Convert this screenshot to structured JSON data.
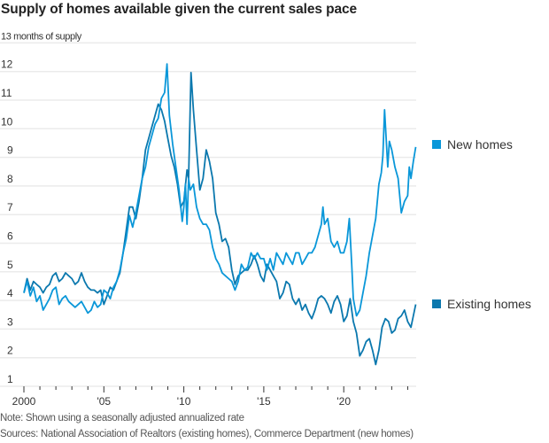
{
  "header": {
    "title": "Supply of homes available given the current sales pace"
  },
  "footer": {
    "note": "Note: Shown using a seasonally adjusted annualized rate",
    "sources": "Sources: National Association of Realtors (existing homes), Commerce Department (new homes)"
  },
  "chart_data": {
    "type": "line",
    "title": "Supply of homes available given the current sales pace",
    "ylabel": "months of supply",
    "y_top_label": "13 months of supply",
    "xlabel": "",
    "ylim": [
      1,
      13
    ],
    "xlim": [
      2000,
      2024.5
    ],
    "y_ticks": [
      1,
      2,
      3,
      4,
      5,
      6,
      7,
      8,
      9,
      10,
      11,
      12,
      13
    ],
    "y_tick_labels": [
      "1",
      "2",
      "3",
      "4",
      "5",
      "6",
      "7",
      "8",
      "9",
      "10",
      "11",
      "12",
      "13 months of supply"
    ],
    "x_ticks": [
      2000,
      2005,
      2010,
      2015,
      2020
    ],
    "x_tick_labels": [
      "2000",
      "'05",
      "'10",
      "'15",
      "'20"
    ],
    "x_minor_ticks": [
      2000,
      2001,
      2002,
      2003,
      2004,
      2005,
      2006,
      2007,
      2008,
      2009,
      2010,
      2011,
      2012,
      2013,
      2014,
      2015,
      2016,
      2017,
      2018,
      2019,
      2020,
      2021,
      2022,
      2023,
      2024
    ],
    "grid": true,
    "legend": "right",
    "series": [
      {
        "name": "New homes",
        "color": "#0a97d9",
        "points": [
          [
            2000.0,
            4.2
          ],
          [
            2000.2,
            4.6
          ],
          [
            2000.4,
            4.1
          ],
          [
            2000.6,
            4.4
          ],
          [
            2000.8,
            3.9
          ],
          [
            2001.0,
            4.1
          ],
          [
            2001.2,
            3.6
          ],
          [
            2001.4,
            3.8
          ],
          [
            2001.6,
            4.0
          ],
          [
            2001.8,
            4.3
          ],
          [
            2002.0,
            4.4
          ],
          [
            2002.2,
            3.8
          ],
          [
            2002.4,
            4.0
          ],
          [
            2002.6,
            4.1
          ],
          [
            2002.8,
            3.9
          ],
          [
            2003.0,
            3.8
          ],
          [
            2003.2,
            3.7
          ],
          [
            2003.4,
            3.8
          ],
          [
            2003.6,
            3.9
          ],
          [
            2003.8,
            3.7
          ],
          [
            2004.0,
            3.5
          ],
          [
            2004.2,
            3.6
          ],
          [
            2004.4,
            3.9
          ],
          [
            2004.6,
            3.7
          ],
          [
            2004.8,
            3.8
          ],
          [
            2005.0,
            4.3
          ],
          [
            2005.2,
            4.2
          ],
          [
            2005.4,
            4.0
          ],
          [
            2005.6,
            4.4
          ],
          [
            2005.8,
            4.6
          ],
          [
            2006.0,
            5.0
          ],
          [
            2006.2,
            5.6
          ],
          [
            2006.4,
            6.1
          ],
          [
            2006.6,
            6.9
          ],
          [
            2006.8,
            6.5
          ],
          [
            2007.0,
            7.0
          ],
          [
            2007.2,
            7.6
          ],
          [
            2007.4,
            8.2
          ],
          [
            2007.6,
            8.6
          ],
          [
            2007.8,
            9.3
          ],
          [
            2008.0,
            9.7
          ],
          [
            2008.2,
            10.1
          ],
          [
            2008.4,
            10.3
          ],
          [
            2008.6,
            11.0
          ],
          [
            2008.8,
            11.2
          ],
          [
            2008.95,
            12.2
          ],
          [
            2009.1,
            10.4
          ],
          [
            2009.3,
            9.4
          ],
          [
            2009.5,
            8.6
          ],
          [
            2009.7,
            7.8
          ],
          [
            2009.9,
            6.7
          ],
          [
            2010.0,
            7.2
          ],
          [
            2010.1,
            8.0
          ],
          [
            2010.2,
            6.6
          ],
          [
            2010.3,
            8.2
          ],
          [
            2010.4,
            7.8
          ],
          [
            2010.6,
            8.0
          ],
          [
            2010.8,
            7.2
          ],
          [
            2011.0,
            6.8
          ],
          [
            2011.2,
            6.6
          ],
          [
            2011.4,
            6.6
          ],
          [
            2011.6,
            6.4
          ],
          [
            2011.8,
            5.8
          ],
          [
            2012.0,
            5.4
          ],
          [
            2012.2,
            5.2
          ],
          [
            2012.4,
            4.9
          ],
          [
            2012.6,
            4.8
          ],
          [
            2012.8,
            4.7
          ],
          [
            2013.0,
            4.6
          ],
          [
            2013.2,
            4.3
          ],
          [
            2013.4,
            4.6
          ],
          [
            2013.6,
            5.2
          ],
          [
            2013.8,
            5.0
          ],
          [
            2014.0,
            5.1
          ],
          [
            2014.2,
            5.6
          ],
          [
            2014.4,
            5.4
          ],
          [
            2014.6,
            5.6
          ],
          [
            2014.8,
            5.4
          ],
          [
            2015.0,
            5.4
          ],
          [
            2015.2,
            5.0
          ],
          [
            2015.4,
            5.4
          ],
          [
            2015.6,
            5.0
          ],
          [
            2015.8,
            5.6
          ],
          [
            2016.0,
            5.4
          ],
          [
            2016.2,
            5.2
          ],
          [
            2016.4,
            5.6
          ],
          [
            2016.6,
            5.4
          ],
          [
            2016.8,
            5.2
          ],
          [
            2017.0,
            5.6
          ],
          [
            2017.2,
            5.6
          ],
          [
            2017.4,
            5.2
          ],
          [
            2017.6,
            5.4
          ],
          [
            2017.8,
            5.6
          ],
          [
            2018.0,
            5.6
          ],
          [
            2018.2,
            5.8
          ],
          [
            2018.4,
            6.2
          ],
          [
            2018.6,
            6.6
          ],
          [
            2018.7,
            7.2
          ],
          [
            2018.8,
            6.6
          ],
          [
            2019.0,
            6.8
          ],
          [
            2019.2,
            6.0
          ],
          [
            2019.4,
            5.8
          ],
          [
            2019.6,
            6.0
          ],
          [
            2019.8,
            5.6
          ],
          [
            2020.0,
            5.6
          ],
          [
            2020.2,
            6.0
          ],
          [
            2020.35,
            6.8
          ],
          [
            2020.5,
            5.2
          ],
          [
            2020.6,
            4.0
          ],
          [
            2020.8,
            3.4
          ],
          [
            2021.0,
            3.6
          ],
          [
            2021.2,
            4.2
          ],
          [
            2021.4,
            4.8
          ],
          [
            2021.6,
            5.6
          ],
          [
            2021.8,
            6.2
          ],
          [
            2022.0,
            6.8
          ],
          [
            2022.2,
            8.0
          ],
          [
            2022.35,
            8.4
          ],
          [
            2022.45,
            9.0
          ],
          [
            2022.55,
            10.6
          ],
          [
            2022.65,
            9.6
          ],
          [
            2022.75,
            8.6
          ],
          [
            2022.85,
            9.5
          ],
          [
            2023.0,
            9.2
          ],
          [
            2023.2,
            8.6
          ],
          [
            2023.4,
            8.2
          ],
          [
            2023.5,
            7.6
          ],
          [
            2023.6,
            7.0
          ],
          [
            2023.8,
            7.4
          ],
          [
            2024.0,
            7.6
          ],
          [
            2024.1,
            8.6
          ],
          [
            2024.2,
            8.2
          ],
          [
            2024.35,
            8.8
          ],
          [
            2024.5,
            9.3
          ]
        ]
      },
      {
        "name": "Existing homes",
        "color": "#0b78ae",
        "points": [
          [
            2000.0,
            4.2
          ],
          [
            2000.2,
            4.7
          ],
          [
            2000.4,
            4.3
          ],
          [
            2000.6,
            4.6
          ],
          [
            2000.8,
            4.5
          ],
          [
            2001.0,
            4.4
          ],
          [
            2001.2,
            4.2
          ],
          [
            2001.4,
            4.4
          ],
          [
            2001.6,
            4.5
          ],
          [
            2001.8,
            4.8
          ],
          [
            2002.0,
            4.9
          ],
          [
            2002.2,
            4.6
          ],
          [
            2002.4,
            4.7
          ],
          [
            2002.6,
            4.9
          ],
          [
            2002.8,
            4.8
          ],
          [
            2003.0,
            4.7
          ],
          [
            2003.2,
            4.5
          ],
          [
            2003.4,
            4.6
          ],
          [
            2003.6,
            4.9
          ],
          [
            2003.8,
            4.6
          ],
          [
            2004.0,
            4.4
          ],
          [
            2004.2,
            4.3
          ],
          [
            2004.4,
            4.3
          ],
          [
            2004.6,
            4.2
          ],
          [
            2004.8,
            4.3
          ],
          [
            2005.0,
            3.8
          ],
          [
            2005.2,
            4.1
          ],
          [
            2005.4,
            4.4
          ],
          [
            2005.6,
            4.3
          ],
          [
            2005.8,
            4.6
          ],
          [
            2006.0,
            4.9
          ],
          [
            2006.2,
            5.6
          ],
          [
            2006.4,
            6.4
          ],
          [
            2006.6,
            7.2
          ],
          [
            2006.8,
            7.2
          ],
          [
            2007.0,
            6.8
          ],
          [
            2007.2,
            7.4
          ],
          [
            2007.4,
            8.2
          ],
          [
            2007.6,
            9.2
          ],
          [
            2007.8,
            9.6
          ],
          [
            2008.0,
            10.0
          ],
          [
            2008.2,
            10.4
          ],
          [
            2008.4,
            10.8
          ],
          [
            2008.6,
            10.6
          ],
          [
            2008.8,
            10.2
          ],
          [
            2009.0,
            9.6
          ],
          [
            2009.2,
            9.0
          ],
          [
            2009.4,
            8.6
          ],
          [
            2009.6,
            8.0
          ],
          [
            2009.8,
            7.2
          ],
          [
            2010.0,
            7.4
          ],
          [
            2010.2,
            8.5
          ],
          [
            2010.3,
            8.2
          ],
          [
            2010.45,
            11.9
          ],
          [
            2010.6,
            10.6
          ],
          [
            2010.8,
            9.2
          ],
          [
            2011.0,
            7.8
          ],
          [
            2011.2,
            8.2
          ],
          [
            2011.4,
            9.2
          ],
          [
            2011.6,
            8.8
          ],
          [
            2011.8,
            8.2
          ],
          [
            2012.0,
            7.0
          ],
          [
            2012.2,
            6.6
          ],
          [
            2012.4,
            6.0
          ],
          [
            2012.6,
            6.1
          ],
          [
            2012.8,
            5.8
          ],
          [
            2013.0,
            5.0
          ],
          [
            2013.2,
            4.5
          ],
          [
            2013.4,
            4.8
          ],
          [
            2013.6,
            4.9
          ],
          [
            2013.8,
            5.0
          ],
          [
            2014.0,
            5.0
          ],
          [
            2014.2,
            5.2
          ],
          [
            2014.4,
            5.5
          ],
          [
            2014.6,
            5.2
          ],
          [
            2014.8,
            4.8
          ],
          [
            2015.0,
            4.6
          ],
          [
            2015.2,
            5.2
          ],
          [
            2015.4,
            5.0
          ],
          [
            2015.6,
            4.8
          ],
          [
            2015.8,
            4.6
          ],
          [
            2016.0,
            4.0
          ],
          [
            2016.2,
            4.2
          ],
          [
            2016.4,
            4.6
          ],
          [
            2016.6,
            4.5
          ],
          [
            2016.8,
            4.0
          ],
          [
            2017.0,
            3.8
          ],
          [
            2017.2,
            4.0
          ],
          [
            2017.4,
            3.6
          ],
          [
            2017.6,
            3.8
          ],
          [
            2017.8,
            3.5
          ],
          [
            2018.0,
            3.3
          ],
          [
            2018.2,
            3.6
          ],
          [
            2018.4,
            4.0
          ],
          [
            2018.6,
            4.1
          ],
          [
            2018.8,
            4.0
          ],
          [
            2019.0,
            3.8
          ],
          [
            2019.2,
            3.5
          ],
          [
            2019.4,
            3.9
          ],
          [
            2019.6,
            4.1
          ],
          [
            2019.8,
            3.8
          ],
          [
            2020.0,
            3.2
          ],
          [
            2020.2,
            3.4
          ],
          [
            2020.4,
            4.0
          ],
          [
            2020.5,
            3.6
          ],
          [
            2020.6,
            3.2
          ],
          [
            2020.8,
            2.8
          ],
          [
            2021.0,
            2.0
          ],
          [
            2021.2,
            2.2
          ],
          [
            2021.4,
            2.5
          ],
          [
            2021.6,
            2.6
          ],
          [
            2021.8,
            2.2
          ],
          [
            2022.0,
            1.7
          ],
          [
            2022.2,
            2.2
          ],
          [
            2022.4,
            3.0
          ],
          [
            2022.6,
            3.3
          ],
          [
            2022.8,
            3.2
          ],
          [
            2023.0,
            2.8
          ],
          [
            2023.2,
            2.9
          ],
          [
            2023.4,
            3.3
          ],
          [
            2023.6,
            3.4
          ],
          [
            2023.8,
            3.6
          ],
          [
            2024.0,
            3.2
          ],
          [
            2024.2,
            3.0
          ],
          [
            2024.35,
            3.4
          ],
          [
            2024.5,
            3.8
          ]
        ]
      }
    ]
  }
}
